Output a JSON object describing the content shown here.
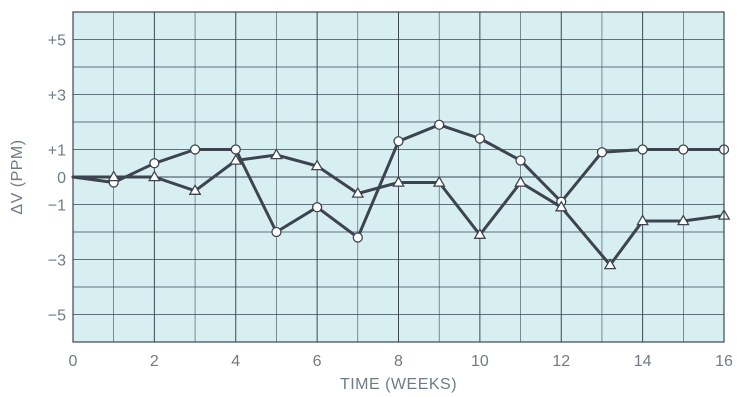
{
  "chart_data": {
    "type": "line",
    "title": "",
    "xlabel": "TIME (WEEKS)",
    "ylabel": "ΔV (PPM)",
    "xlim": [
      0,
      16
    ],
    "ylim": [
      -6,
      6
    ],
    "grid": true,
    "x_ticks": [
      {
        "value": 0,
        "label": "0"
      },
      {
        "value": 2,
        "label": "2"
      },
      {
        "value": 4,
        "label": "4"
      },
      {
        "value": 6,
        "label": "6"
      },
      {
        "value": 8,
        "label": "8"
      },
      {
        "value": 10,
        "label": "10"
      },
      {
        "value": 12,
        "label": "12"
      },
      {
        "value": 14,
        "label": "14"
      },
      {
        "value": 16,
        "label": "16"
      }
    ],
    "y_ticks": [
      {
        "value": 5,
        "label": "+5"
      },
      {
        "value": 3,
        "label": "+3"
      },
      {
        "value": 1,
        "label": "+1"
      },
      {
        "value": 0,
        "label": "0"
      },
      {
        "value": -1,
        "label": "−1"
      },
      {
        "value": -3,
        "label": "−3"
      },
      {
        "value": -5,
        "label": "−5"
      }
    ],
    "colors": {
      "plot_background": "#d8eff2",
      "grid": "#3a4654",
      "line": "#3d4450",
      "text": "#6f7c86"
    },
    "series": [
      {
        "marker": "circle",
        "x": [
          0,
          1,
          2,
          3,
          4,
          5,
          6,
          7,
          8,
          9,
          10,
          11,
          12,
          13,
          14,
          15,
          16
        ],
        "y": [
          0,
          -0.2,
          0.5,
          1.0,
          1.0,
          -2.0,
          -1.1,
          -2.2,
          1.3,
          1.9,
          1.4,
          0.6,
          -0.9,
          0.9,
          1.0,
          1.0,
          1.0
        ]
      },
      {
        "marker": "triangle",
        "x": [
          0,
          1,
          2,
          3,
          4,
          5,
          6,
          7,
          8,
          9,
          10,
          11,
          12,
          13.2,
          14,
          15,
          16
        ],
        "y": [
          0,
          0.0,
          0.0,
          -0.5,
          0.6,
          0.8,
          0.4,
          -0.6,
          -0.2,
          -0.2,
          -2.1,
          -0.2,
          -1.1,
          -3.2,
          -1.6,
          -1.6,
          -1.4
        ]
      }
    ]
  }
}
